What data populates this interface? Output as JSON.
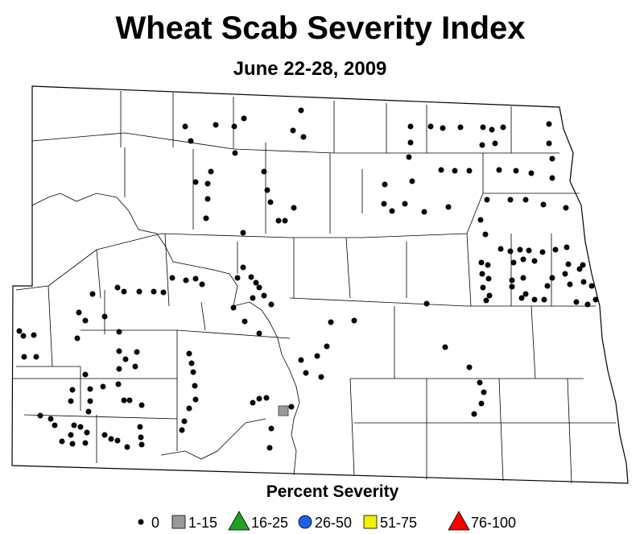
{
  "header": {
    "title": "Wheat Scab Severity Index",
    "subtitle": "June 22-28, 2009"
  },
  "legend": {
    "title": "Percent Severity",
    "items": [
      {
        "label": "0",
        "shape": "dot",
        "color": "#000000"
      },
      {
        "label": "1-15",
        "shape": "square",
        "color": "#999999"
      },
      {
        "label": "16-25",
        "shape": "triangle",
        "color": "#22a022"
      },
      {
        "label": "26-50",
        "shape": "circle",
        "color": "#1f5fe6"
      },
      {
        "label": "51-75",
        "shape": "square",
        "color": "#f0f000"
      },
      {
        "label": "76-100",
        "shape": "triangle",
        "color": "#ff0000"
      }
    ]
  }
}
